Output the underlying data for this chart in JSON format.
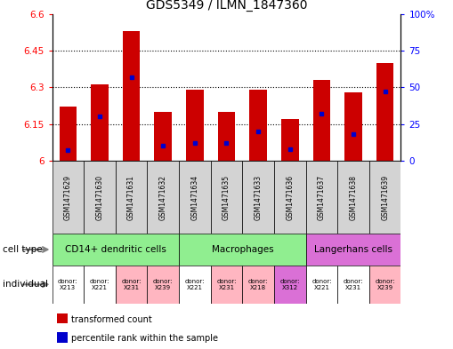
{
  "title": "GDS5349 / ILMN_1847360",
  "samples": [
    "GSM1471629",
    "GSM1471630",
    "GSM1471631",
    "GSM1471632",
    "GSM1471634",
    "GSM1471635",
    "GSM1471633",
    "GSM1471636",
    "GSM1471637",
    "GSM1471638",
    "GSM1471639"
  ],
  "transformed_count": [
    6.22,
    6.31,
    6.53,
    6.2,
    6.29,
    6.2,
    6.29,
    6.17,
    6.33,
    6.28,
    6.4
  ],
  "percentile_rank": [
    7,
    30,
    57,
    10,
    12,
    12,
    20,
    8,
    32,
    18,
    47
  ],
  "ylim_left": [
    6.0,
    6.6
  ],
  "ylim_right": [
    0,
    100
  ],
  "yticks_left": [
    6.0,
    6.15,
    6.3,
    6.45,
    6.6
  ],
  "yticks_right": [
    0,
    25,
    50,
    75,
    100
  ],
  "ytick_labels_left": [
    "6",
    "6.15",
    "6.3",
    "6.45",
    "6.6"
  ],
  "ytick_labels_right": [
    "0",
    "25",
    "50",
    "75",
    "100%"
  ],
  "cell_type_groups": [
    {
      "label": "CD14+ dendritic cells",
      "start": 0,
      "end": 4,
      "color": "#90EE90"
    },
    {
      "label": "Macrophages",
      "start": 4,
      "end": 8,
      "color": "#90EE90"
    },
    {
      "label": "Langerhans cells",
      "start": 8,
      "end": 11,
      "color": "#DA70D6"
    }
  ],
  "individual_groups": [
    {
      "label": "donor:\nX213",
      "index": 0,
      "color": "#ffffff"
    },
    {
      "label": "donor:\nX221",
      "index": 1,
      "color": "#ffffff"
    },
    {
      "label": "donor:\nX231",
      "index": 2,
      "color": "#FFB6C1"
    },
    {
      "label": "donor:\nX239",
      "index": 3,
      "color": "#FFB6C1"
    },
    {
      "label": "donor:\nX221",
      "index": 4,
      "color": "#ffffff"
    },
    {
      "label": "donor:\nX231",
      "index": 5,
      "color": "#FFB6C1"
    },
    {
      "label": "donor:\nX218",
      "index": 6,
      "color": "#FFB6C1"
    },
    {
      "label": "donor:\nX312",
      "index": 7,
      "color": "#DA70D6"
    },
    {
      "label": "donor:\nX221",
      "index": 8,
      "color": "#ffffff"
    },
    {
      "label": "donor:\nX231",
      "index": 9,
      "color": "#ffffff"
    },
    {
      "label": "donor:\nX239",
      "index": 10,
      "color": "#FFB6C1"
    }
  ],
  "bar_color": "#CC0000",
  "dot_color": "#0000CC",
  "bar_width": 0.55,
  "base_value": 6.0,
  "grid_color": "black",
  "sample_bg_color": "#D3D3D3",
  "legend_items": [
    {
      "label": "transformed count",
      "color": "#CC0000"
    },
    {
      "label": "percentile rank within the sample",
      "color": "#0000CC"
    }
  ]
}
